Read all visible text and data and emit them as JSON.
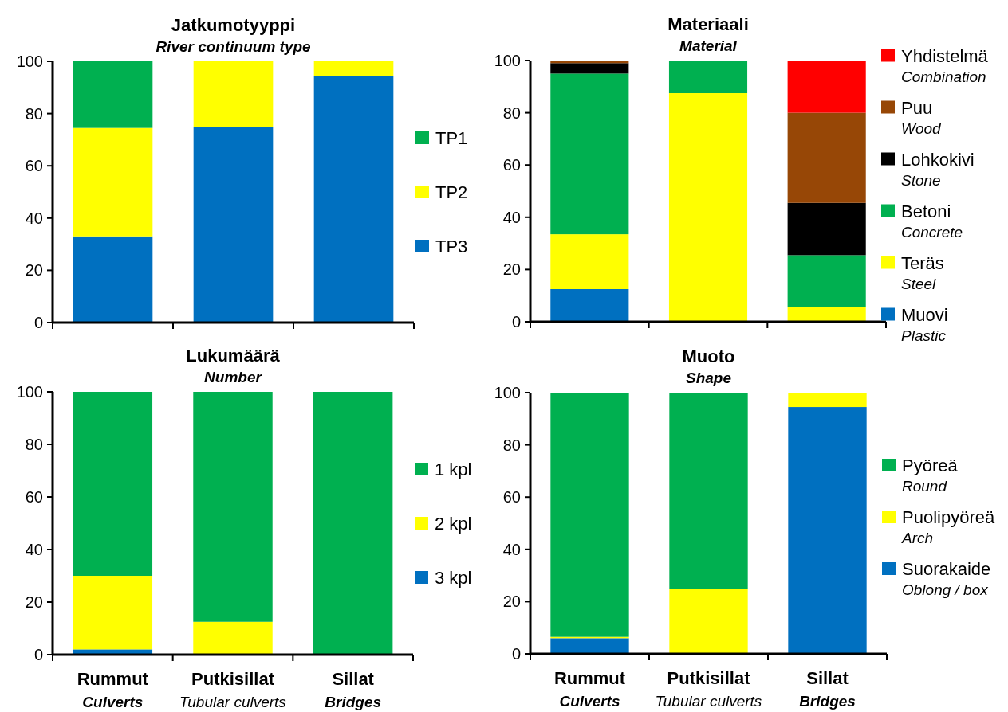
{
  "chart_data": [
    {
      "type": "bar",
      "title": "Jatkumotyyppi",
      "subtitle": "River continuum type",
      "categories": [
        null,
        null,
        null
      ],
      "stacked": true,
      "ylim": [
        0,
        100
      ],
      "yticks": [
        0,
        20,
        40,
        60,
        80,
        100
      ],
      "legend": "right",
      "tick_labels": "y",
      "series": [
        {
          "name": "TP3",
          "color": "#0070c0",
          "values": [
            33,
            75,
            94.5
          ]
        },
        {
          "name": "TP2",
          "color": "#ffff00",
          "values": [
            41.5,
            25,
            5.5
          ]
        },
        {
          "name": "TP1",
          "color": "#00b050",
          "values": [
            25.5,
            0,
            0
          ]
        }
      ]
    },
    {
      "type": "bar",
      "title": "Materiaali",
      "subtitle": "Material",
      "categories": [
        null,
        null,
        null
      ],
      "stacked": true,
      "ylim": [
        0,
        100
      ],
      "yticks": [
        0,
        20,
        40,
        60,
        80,
        100
      ],
      "legend": "right",
      "tick_labels": "y",
      "series": [
        {
          "name": "Muovi\nPlastic",
          "color": "#0070c0",
          "values": [
            12.5,
            0,
            0
          ]
        },
        {
          "name": "Teräs\nSteel",
          "color": "#ffff00",
          "values": [
            21,
            87.5,
            5.5
          ]
        },
        {
          "name": "Betoni\nConcrete",
          "color": "#00b050",
          "values": [
            61.5,
            12.5,
            20
          ]
        },
        {
          "name": "Lohkokivi\nStone",
          "color": "#000000",
          "values": [
            4,
            0,
            20
          ]
        },
        {
          "name": "Puu\nWood",
          "color": "#974706",
          "values": [
            1,
            0,
            34.5
          ]
        },
        {
          "name": "Yhdistelmä\nCombination",
          "color": "#ff0000",
          "values": [
            0,
            0,
            20
          ]
        }
      ]
    },
    {
      "type": "bar",
      "title": "Lukumäärä",
      "subtitle": "Number",
      "categories": [
        "Rummut\nCulverts",
        "Putkisillat\nTubular culverts",
        "Sillat\nBridges"
      ],
      "stacked": true,
      "ylim": [
        0,
        100
      ],
      "yticks": [
        0,
        20,
        40,
        60,
        80,
        100
      ],
      "legend": "right",
      "series": [
        {
          "name": "3 kpl",
          "color": "#0070c0",
          "values": [
            2,
            0,
            0
          ]
        },
        {
          "name": "2 kpl",
          "color": "#ffff00",
          "values": [
            28,
            12.5,
            0
          ]
        },
        {
          "name": "1 kpl",
          "color": "#00b050",
          "values": [
            70,
            87.5,
            100
          ]
        }
      ]
    },
    {
      "type": "bar",
      "title": "Muoto",
      "subtitle": "Shape",
      "categories": [
        "Rummut\nCulverts",
        "Putkisillat\nTubular culverts",
        "Sillat\nBridges"
      ],
      "stacked": true,
      "ylim": [
        0,
        100
      ],
      "yticks": [
        0,
        20,
        40,
        60,
        80,
        100
      ],
      "legend": "right",
      "series": [
        {
          "name": "Suorakaide\nOblong / box",
          "color": "#0070c0",
          "values": [
            6,
            0,
            94.5
          ]
        },
        {
          "name": "Puolipyöreä\nArch",
          "color": "#ffff00",
          "values": [
            0.5,
            25,
            5.5
          ]
        },
        {
          "name": "Pyöreä\nRound",
          "color": "#00b050",
          "values": [
            93.5,
            75,
            0
          ]
        }
      ]
    }
  ]
}
